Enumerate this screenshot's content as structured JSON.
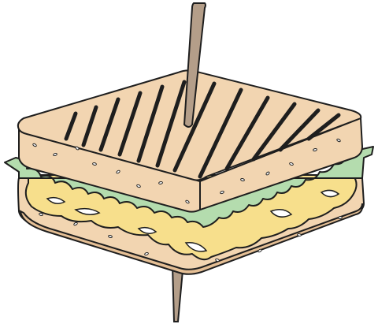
{
  "illustration": {
    "subject": "sandwich-with-toothpick",
    "colors": {
      "outline": "#1e1e1e",
      "bread": "#f2d5b1",
      "bread_shade": "#e5bf95",
      "cheese": "#f7df8c",
      "cheese_shade": "#ecc96a",
      "lettuce": "#b4dcae",
      "toothpick": "#b49e89",
      "seed": "#ffffff",
      "melt_highlight": "#ffffff"
    }
  }
}
